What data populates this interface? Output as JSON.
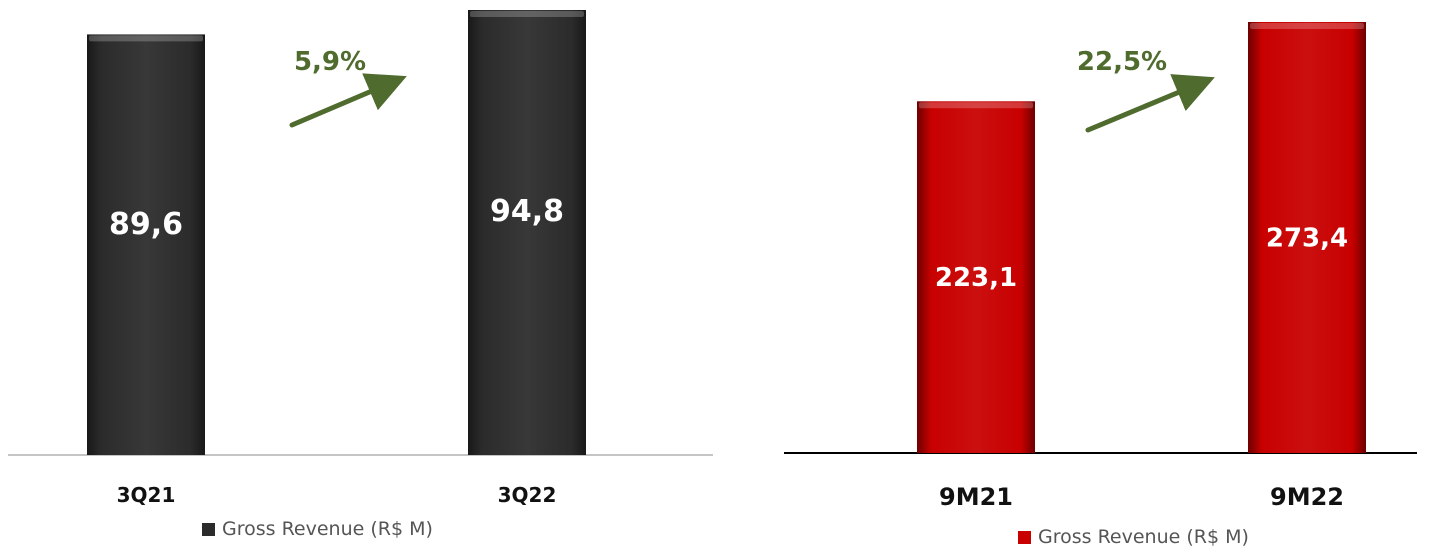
{
  "chart_data": [
    {
      "type": "bar",
      "categories": [
        "3Q21",
        "3Q22"
      ],
      "values": [
        89.6,
        94.8
      ],
      "value_labels": [
        "89,6",
        "94,8"
      ],
      "growth_label": "5,9%",
      "series": [
        {
          "name": "Gross Revenue (R$ M)",
          "values": [
            89.6,
            94.8
          ]
        }
      ],
      "legend": "Gross Revenue (R$ M)",
      "legend_position": "bottom",
      "color": "#2b2b2b",
      "ylim": [
        0,
        94.8
      ],
      "grid": false
    },
    {
      "type": "bar",
      "categories": [
        "9M21",
        "9M22"
      ],
      "values": [
        223.1,
        273.4
      ],
      "value_labels": [
        "223,1",
        "273,4"
      ],
      "growth_label": "22,5%",
      "series": [
        {
          "name": "Gross Revenue (R$ M)",
          "values": [
            223.1,
            273.4
          ]
        }
      ],
      "legend": "Gross Revenue (R$ M)",
      "legend_position": "bottom",
      "color": "#c80000",
      "ylim": [
        0,
        273.4
      ],
      "grid": false
    }
  ],
  "colors": {
    "arrow": "#4f6b2e",
    "axis": "#b0b0b0",
    "axis_dark": "#000000"
  }
}
